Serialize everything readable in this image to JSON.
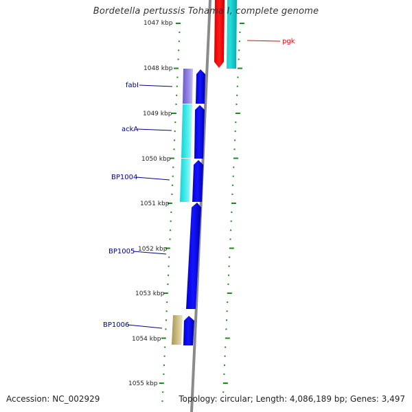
{
  "title": "Bordetella pertussis Tohama I, complete genome",
  "footer": {
    "accession": "Accession: NC_002929",
    "topology": "Topology: circular; Length: 4,086,189 bp; Genes: 3,497"
  },
  "axis_labels": [
    "1047 kbp",
    "1048 kbp",
    "1049 kbp",
    "1050 kbp",
    "1051 kbp",
    "1052 kbp",
    "1053 kbp",
    "1054 kbp",
    "1055 kbp"
  ],
  "gene_labels": [
    "fabI",
    "ackA",
    "BP1004",
    "BP1005",
    "BP1006",
    "pgk"
  ],
  "colors": {
    "forward_cds": "#0000ee",
    "reverse_cds": "#ff0000",
    "ruler_tick": "#1a8a1a",
    "backbone": "#8a8a8a",
    "label_forward": "#00008b",
    "label_reverse": "#ff0000",
    "cog_lipid": "#7766cc",
    "cog_energy": "#22dddd",
    "cog_unknown": "#bba866"
  }
}
